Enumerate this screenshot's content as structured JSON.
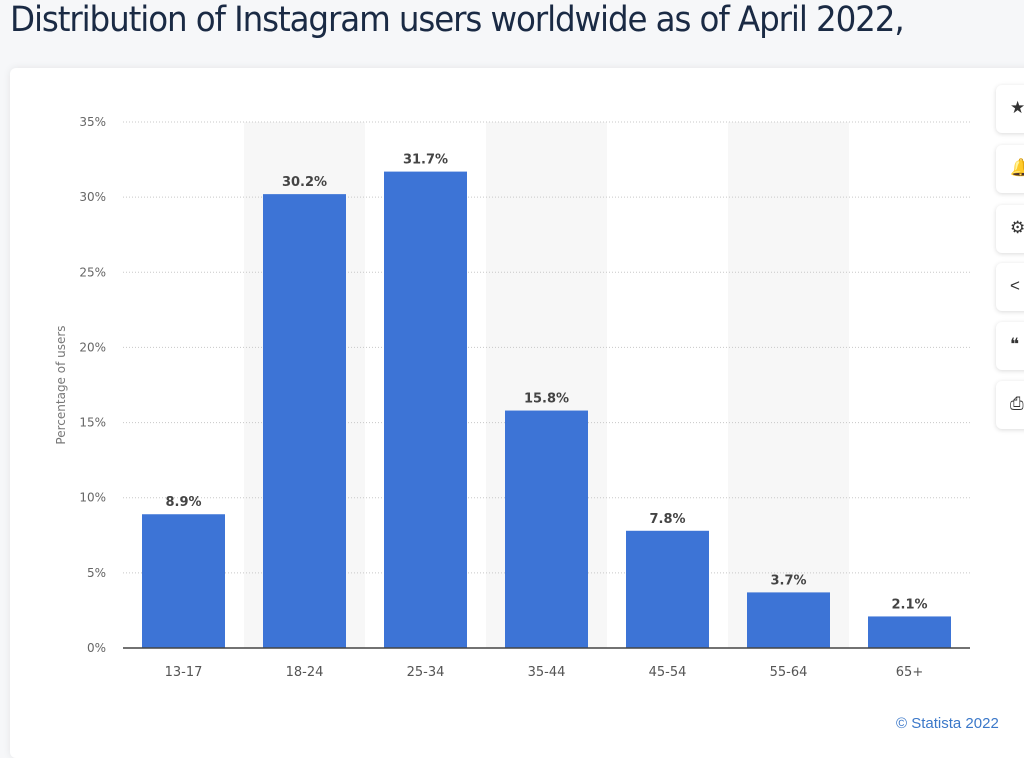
{
  "page_title": "Distribution of Instagram users worldwide as of April 2022,",
  "credit": "© Statista 2022",
  "side_buttons": [
    {
      "icon": "star-icon",
      "glyph": "★"
    },
    {
      "icon": "bell-icon",
      "glyph": "🔔"
    },
    {
      "icon": "gear-icon",
      "glyph": "⚙"
    },
    {
      "icon": "share-icon",
      "glyph": "<"
    },
    {
      "icon": "quote-icon",
      "glyph": "❝"
    },
    {
      "icon": "print-icon",
      "glyph": "⎙"
    }
  ],
  "chart_data": {
    "type": "bar",
    "categories": [
      "13-17",
      "18-24",
      "25-34",
      "35-44",
      "45-54",
      "55-64",
      "65+"
    ],
    "values": [
      8.9,
      30.2,
      31.7,
      15.8,
      7.8,
      3.7,
      2.1
    ],
    "data_labels": [
      "8.9%",
      "30.2%",
      "31.7%",
      "15.8%",
      "7.8%",
      "3.7%",
      "2.1%"
    ],
    "ylabel": "Percentage of users",
    "ylim": [
      0,
      35
    ],
    "yticks": [
      "0%",
      "5%",
      "10%",
      "15%",
      "20%",
      "25%",
      "30%",
      "35%"
    ],
    "grid": true,
    "bar_color": "#3d74d6"
  }
}
